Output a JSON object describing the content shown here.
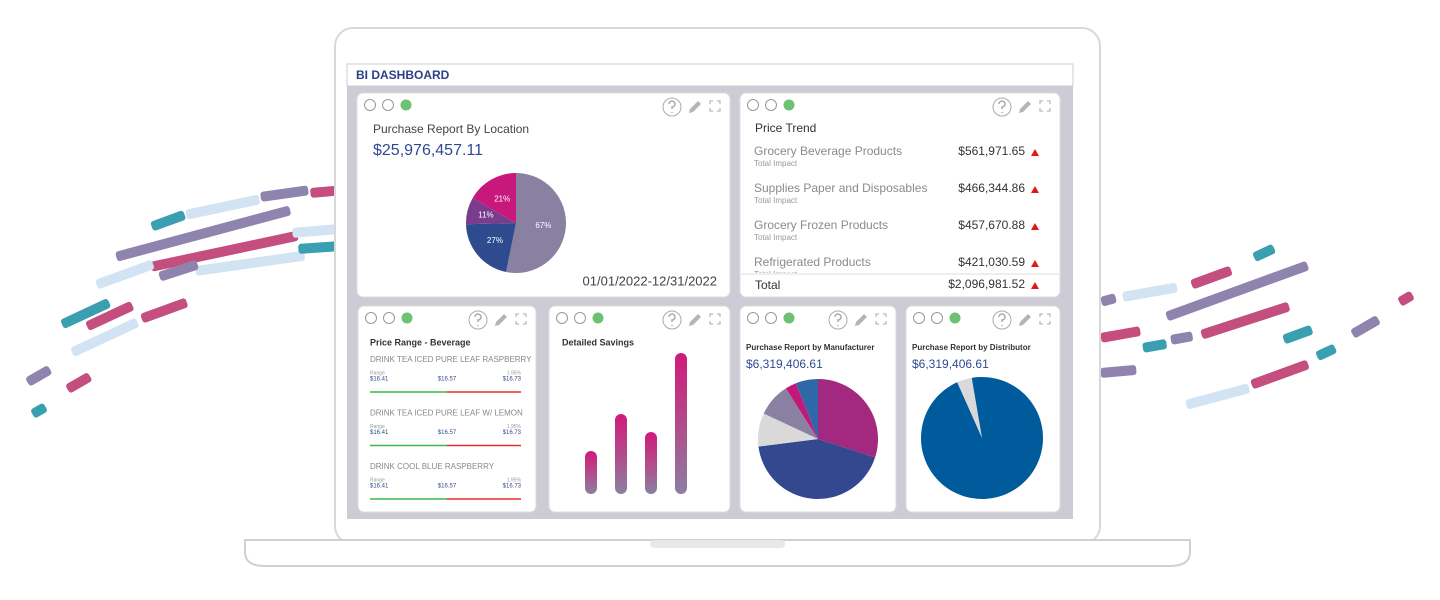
{
  "header": {
    "title": "BI DASHBOARD"
  },
  "location": {
    "title": "Purchase Report By Location",
    "amount": "$25,976,457.11",
    "date_range": "01/01/2022-12/31/2022",
    "chart": {
      "type": "pie",
      "values": [
        67,
        27,
        11,
        21
      ],
      "value_labels": [
        "67%",
        "27%",
        "11%",
        "21%"
      ],
      "colors": [
        "#8a80a2",
        "#2f4b8f",
        "#7a3d8e",
        "#c8187b"
      ]
    }
  },
  "price_trend": {
    "title": "Price Trend",
    "items": [
      {
        "name": "Grocery Beverage Products",
        "note": "Total Impact",
        "value": "$561,971.65"
      },
      {
        "name": "Supplies Paper and Disposables",
        "note": "Total Impact",
        "value": "$466,344.86"
      },
      {
        "name": "Grocery Frozen Products",
        "note": "Total Impact",
        "value": "$457,670.88"
      },
      {
        "name": "Refrigerated Products",
        "note": "Total Impact",
        "value": "$421,030.59"
      }
    ],
    "total": {
      "label": "Total",
      "value": "$2,096,981.52"
    }
  },
  "price_range": {
    "title": "Price Range - Beverage",
    "items": [
      {
        "name": "DRINK TEA ICED PURE LEAF RASPBERRY",
        "range_label": "Range",
        "low": "$16.41",
        "mid": "$16.57",
        "change": "1.95%",
        "high": "$16.73"
      },
      {
        "name": "DRINK TEA ICED PURE LEAF W/ LEMON",
        "range_label": "Range",
        "low": "$16.41",
        "mid": "$16.57",
        "change": "1.95%",
        "high": "$16.73"
      },
      {
        "name": "DRINK COOL BLUE RASPBERRY",
        "range_label": "Range",
        "low": "$16.41",
        "mid": "$16.57",
        "change": "1.95%",
        "high": "$16.73"
      }
    ]
  },
  "savings": {
    "title": "Detailed Savings",
    "chart": {
      "type": "bar",
      "values": [
        43,
        80,
        62,
        141
      ]
    }
  },
  "manufacturer": {
    "title": "Purchase Report by Manufacturer",
    "amount": "$6,319,406.61",
    "chart": {
      "type": "pie",
      "values": [
        30,
        43,
        9,
        9,
        3,
        6
      ],
      "colors": [
        "#a3287f",
        "#34488f",
        "#d9d9d9",
        "#8a80a2",
        "#c2187a",
        "#2e68a8"
      ]
    }
  },
  "distributor": {
    "title": "Purchase Report by Distributor",
    "amount": "$6,319,406.61",
    "chart": {
      "type": "pie",
      "values": [
        4,
        96
      ],
      "colors": [
        "#d9d9d9",
        "#005b9d"
      ]
    }
  }
}
